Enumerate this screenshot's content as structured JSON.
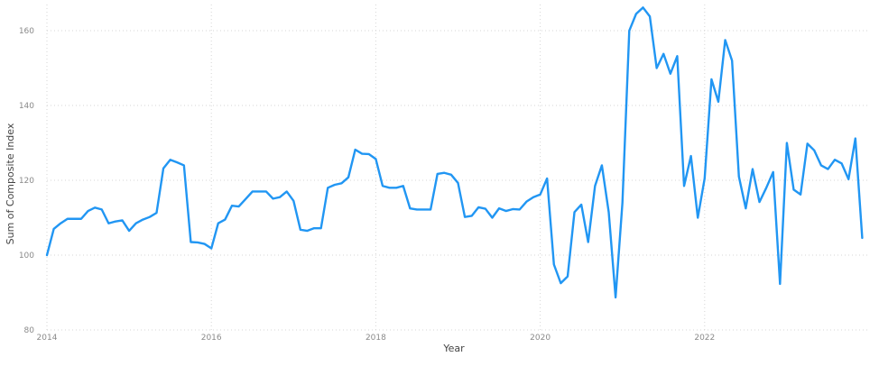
{
  "chart_data": {
    "type": "line",
    "xlabel": "Year",
    "ylabel": "Sum of Composite Index",
    "xlim": [
      2014,
      2024
    ],
    "ylim": [
      80,
      167
    ],
    "x_ticks": [
      "2014",
      "2016",
      "2018",
      "2020",
      "2022"
    ],
    "y_ticks": [
      "80",
      "100",
      "120",
      "140",
      "160"
    ],
    "grid": true,
    "color": "#2196f3",
    "series": [
      {
        "x": [
          "2014-01",
          "2014-02",
          "2014-03",
          "2014-04",
          "2014-05",
          "2014-06",
          "2014-07",
          "2014-08",
          "2014-09",
          "2014-10",
          "2014-11",
          "2014-12",
          "2015-01",
          "2015-02",
          "2015-03",
          "2015-04",
          "2015-05",
          "2015-06",
          "2015-07",
          "2015-08",
          "2015-09",
          "2015-10",
          "2015-11",
          "2015-12",
          "2016-01",
          "2016-02",
          "2016-03",
          "2016-04",
          "2016-05",
          "2016-06",
          "2016-07",
          "2016-08",
          "2016-09",
          "2016-10",
          "2016-11",
          "2016-12",
          "2017-01",
          "2017-02",
          "2017-03",
          "2017-04",
          "2017-05",
          "2017-06",
          "2017-07",
          "2017-08",
          "2017-09",
          "2017-10",
          "2017-11",
          "2017-12",
          "2018-01",
          "2018-02",
          "2018-03",
          "2018-04",
          "2018-05",
          "2018-06",
          "2018-07",
          "2018-08",
          "2018-09",
          "2018-10",
          "2018-11",
          "2018-12",
          "2019-01",
          "2019-02",
          "2019-03",
          "2019-04",
          "2019-05",
          "2019-06",
          "2019-07",
          "2019-08",
          "2019-09",
          "2019-10",
          "2019-11",
          "2019-12",
          "2020-01",
          "2020-02",
          "2020-03",
          "2020-04",
          "2020-05",
          "2020-06",
          "2020-07",
          "2020-08",
          "2020-09",
          "2020-10",
          "2020-11",
          "2020-12",
          "2021-01",
          "2021-02",
          "2021-03",
          "2021-04",
          "2021-05",
          "2021-06",
          "2021-07",
          "2021-08",
          "2021-09",
          "2021-10",
          "2021-11",
          "2021-12",
          "2022-01",
          "2022-02",
          "2022-03",
          "2022-04",
          "2022-05",
          "2022-06",
          "2022-07",
          "2022-08",
          "2022-09",
          "2022-10",
          "2022-11",
          "2022-12",
          "2023-01",
          "2023-02",
          "2023-03",
          "2023-04",
          "2023-05",
          "2023-06",
          "2023-07",
          "2023-08",
          "2023-09",
          "2023-10",
          "2023-11",
          "2023-12"
        ],
        "values": [
          100,
          107,
          108.5,
          109.7,
          109.7,
          109.7,
          111.8,
          112.7,
          112.2,
          108.5,
          109,
          109.3,
          106.5,
          108.5,
          109.5,
          110.2,
          111.3,
          123.2,
          125.5,
          124.8,
          124,
          103.5,
          103.4,
          103,
          101.8,
          108.5,
          109.5,
          113.2,
          113,
          115,
          117,
          117,
          117,
          115.1,
          115.5,
          117,
          114.5,
          106.8,
          106.5,
          107.2,
          107.2,
          118,
          118.8,
          119.2,
          120.8,
          128.2,
          127.1,
          127,
          125.7,
          118.5,
          118,
          118,
          118.5,
          112.5,
          112.2,
          112.2,
          112.2,
          121.7,
          122,
          121.5,
          119.3,
          110.2,
          110.5,
          112.8,
          112.4,
          110,
          112.5,
          111.8,
          112.3,
          112.2,
          114.3,
          115.5,
          116.2,
          120.5,
          97.5,
          92.5,
          94.3,
          111.5,
          113.5,
          103.5,
          118.5,
          124,
          111.5,
          88.7,
          114,
          160,
          164.5,
          166.2,
          163.8,
          150,
          153.8,
          148.5,
          153.2,
          118.5,
          126.5,
          110,
          120.5,
          147,
          141,
          157.5,
          152,
          121,
          112.5,
          123,
          114.2,
          118,
          122.2,
          92.3,
          130,
          117.5,
          116.2,
          129.8,
          128,
          124,
          123,
          125.5,
          124.5,
          120.3,
          131.2,
          104.6
        ]
      }
    ]
  }
}
